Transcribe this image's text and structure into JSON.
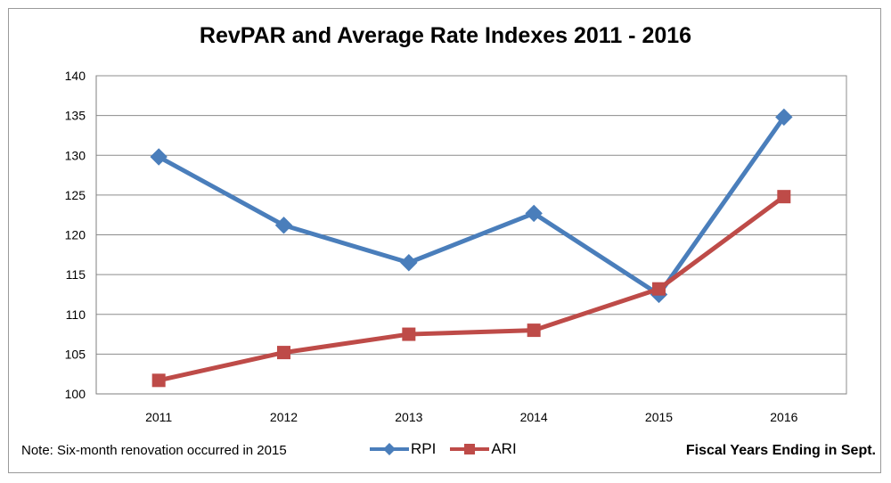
{
  "chart_data": {
    "type": "line",
    "title": "RevPAR and Average Rate Indexes 2011 - 2016",
    "xlabel": "Fiscal Years Ending  in Sept.",
    "ylabel": "",
    "categories": [
      "2011",
      "2012",
      "2013",
      "2014",
      "2015",
      "2016"
    ],
    "ylim": [
      100,
      140
    ],
    "yticks": [
      "100",
      "105",
      "110",
      "115",
      "120",
      "125",
      "130",
      "135",
      "140"
    ],
    "grid": true,
    "legend_position": "bottom",
    "series": [
      {
        "name": "RPI",
        "color": "#4a7ebb",
        "marker": "diamond",
        "values": [
          129.8,
          121.2,
          116.5,
          122.7,
          112.5,
          134.8
        ]
      },
      {
        "name": "ARI",
        "color": "#be4b48",
        "marker": "square",
        "values": [
          101.7,
          105.2,
          107.5,
          108.0,
          113.2,
          124.8
        ]
      }
    ],
    "annotations": [
      "Note: Six-month renovation occurred in 2015"
    ]
  }
}
